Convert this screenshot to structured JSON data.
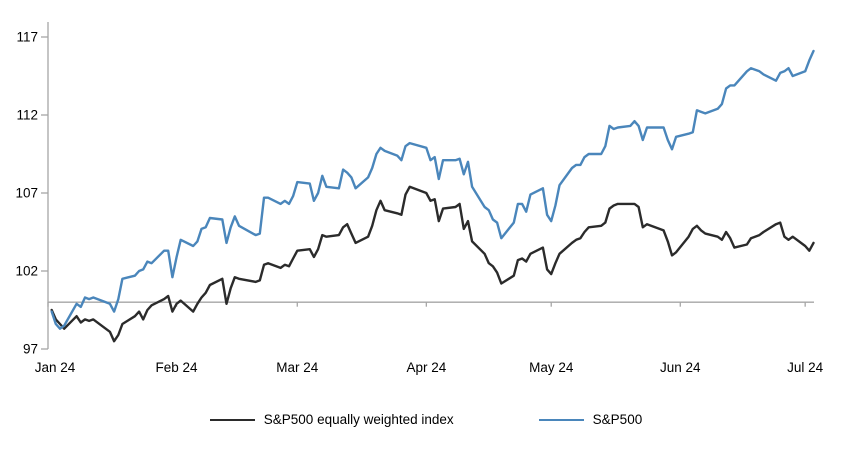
{
  "chart_data": {
    "type": "line",
    "title": "",
    "xlabel": "",
    "ylabel": "",
    "grid": false,
    "legend_position": "bottom",
    "x_axis": {
      "tick_labels": [
        "Jan 24",
        "Feb 24",
        "Mar 24",
        "Apr 24",
        "May 24",
        "Jun 24",
        "Jul 24"
      ],
      "tick_dates": [
        "01-01",
        "02-01",
        "03-01",
        "04-01",
        "05-01",
        "06-01",
        "07-01"
      ]
    },
    "y_axis": {
      "ticks": [
        97,
        102,
        107,
        112,
        117
      ],
      "range": [
        97,
        117
      ],
      "axis_cross_value": 100
    },
    "dates": [
      "01-02",
      "01-03",
      "01-04",
      "01-05",
      "01-08",
      "01-09",
      "01-10",
      "01-11",
      "01-12",
      "01-16",
      "01-17",
      "01-18",
      "01-19",
      "01-22",
      "01-23",
      "01-24",
      "01-25",
      "01-26",
      "01-29",
      "01-30",
      "01-31",
      "02-01",
      "02-02",
      "02-05",
      "02-06",
      "02-07",
      "02-08",
      "02-09",
      "02-12",
      "02-13",
      "02-14",
      "02-15",
      "02-16",
      "02-20",
      "02-21",
      "02-22",
      "02-23",
      "02-26",
      "02-27",
      "02-28",
      "02-29",
      "03-01",
      "03-04",
      "03-05",
      "03-06",
      "03-07",
      "03-08",
      "03-11",
      "03-12",
      "03-13",
      "03-14",
      "03-15",
      "03-18",
      "03-19",
      "03-20",
      "03-21",
      "03-22",
      "03-25",
      "03-26",
      "03-27",
      "03-28",
      "04-01",
      "04-02",
      "04-03",
      "04-04",
      "04-05",
      "04-08",
      "04-09",
      "04-10",
      "04-11",
      "04-12",
      "04-15",
      "04-16",
      "04-17",
      "04-18",
      "04-19",
      "04-22",
      "04-23",
      "04-24",
      "04-25",
      "04-26",
      "04-29",
      "04-30",
      "05-01",
      "05-02",
      "05-03",
      "05-06",
      "05-07",
      "05-08",
      "05-09",
      "05-10",
      "05-13",
      "05-14",
      "05-15",
      "05-16",
      "05-17",
      "05-20",
      "05-21",
      "05-22",
      "05-23",
      "05-24",
      "05-28",
      "05-29",
      "05-30",
      "05-31",
      "06-03",
      "06-04",
      "06-05",
      "06-06",
      "06-07",
      "06-10",
      "06-11",
      "06-12",
      "06-13",
      "06-14",
      "06-17",
      "06-18",
      "06-20",
      "06-21",
      "06-24",
      "06-25",
      "06-26",
      "06-27",
      "06-28",
      "07-01",
      "07-02",
      "07-03"
    ],
    "series": [
      {
        "name": "S&P500 equally weighted index",
        "color": "#2b2b2b",
        "values": [
          99.5,
          98.9,
          98.6,
          98.3,
          99.1,
          98.7,
          98.9,
          98.8,
          98.9,
          98.1,
          97.5,
          97.9,
          98.6,
          99.1,
          99.4,
          98.9,
          99.5,
          99.8,
          100.2,
          100.4,
          99.4,
          99.9,
          100.1,
          99.4,
          99.9,
          100.3,
          100.6,
          101.1,
          101.5,
          99.9,
          100.9,
          101.6,
          101.5,
          101.3,
          101.4,
          102.4,
          102.5,
          102.2,
          102.4,
          102.3,
          102.8,
          103.3,
          103.4,
          102.9,
          103.4,
          104.3,
          104.2,
          104.3,
          104.8,
          105.0,
          104.4,
          103.8,
          104.2,
          104.9,
          105.9,
          106.5,
          105.9,
          105.7,
          105.6,
          106.9,
          107.4,
          107.0,
          106.5,
          106.6,
          105.2,
          106.0,
          106.1,
          106.3,
          104.7,
          105.2,
          103.9,
          103.1,
          102.5,
          102.3,
          101.9,
          101.2,
          101.7,
          102.7,
          102.8,
          102.6,
          103.1,
          103.5,
          102.1,
          101.8,
          102.5,
          103.1,
          103.8,
          104.0,
          104.1,
          104.5,
          104.8,
          104.9,
          105.1,
          106.0,
          106.2,
          106.3,
          106.3,
          106.3,
          106.1,
          104.8,
          105.0,
          104.6,
          103.9,
          103.0,
          103.2,
          104.2,
          104.7,
          104.9,
          104.6,
          104.4,
          104.2,
          104.0,
          104.5,
          104.1,
          103.5,
          103.7,
          104.1,
          104.3,
          104.5,
          105.0,
          105.1,
          104.2,
          104.0,
          104.2,
          103.6,
          103.3,
          103.8
        ]
      },
      {
        "name": "S&P500",
        "color": "#4a86bb",
        "values": [
          99.4,
          98.6,
          98.3,
          98.5,
          99.9,
          99.7,
          100.3,
          100.2,
          100.3,
          99.9,
          99.4,
          100.2,
          101.5,
          101.7,
          102.0,
          102.1,
          102.6,
          102.5,
          103.3,
          103.3,
          101.6,
          102.9,
          104.0,
          103.6,
          103.9,
          104.7,
          104.8,
          105.4,
          105.3,
          103.8,
          104.8,
          105.5,
          104.9,
          104.3,
          104.4,
          106.7,
          106.7,
          106.3,
          106.5,
          106.3,
          106.8,
          107.7,
          107.6,
          106.5,
          107.0,
          108.1,
          107.4,
          107.3,
          108.5,
          108.3,
          108.0,
          107.3,
          108.0,
          108.6,
          109.5,
          109.9,
          109.7,
          109.4,
          109.1,
          110.0,
          110.2,
          109.9,
          109.1,
          109.3,
          107.9,
          109.1,
          109.1,
          109.2,
          108.2,
          109.0,
          107.4,
          106.1,
          105.9,
          105.3,
          105.1,
          104.1,
          105.1,
          106.3,
          106.3,
          105.8,
          106.9,
          107.3,
          105.6,
          105.2,
          106.2,
          107.5,
          108.6,
          108.8,
          108.8,
          109.3,
          109.5,
          109.5,
          110.0,
          111.3,
          111.1,
          111.2,
          111.3,
          111.6,
          111.3,
          110.4,
          111.2,
          111.2,
          110.4,
          109.8,
          110.6,
          110.8,
          110.9,
          112.3,
          112.2,
          112.1,
          112.4,
          112.7,
          113.7,
          113.9,
          113.9,
          114.8,
          115.0,
          114.8,
          114.6,
          114.2,
          114.7,
          114.8,
          115.0,
          114.5,
          114.8,
          115.5,
          116.1
        ]
      }
    ],
    "colors": {
      "axis_line": "#a6a6a6",
      "baseline": "#a6a6a6",
      "tick_text": "#000000",
      "background": "#ffffff"
    }
  }
}
